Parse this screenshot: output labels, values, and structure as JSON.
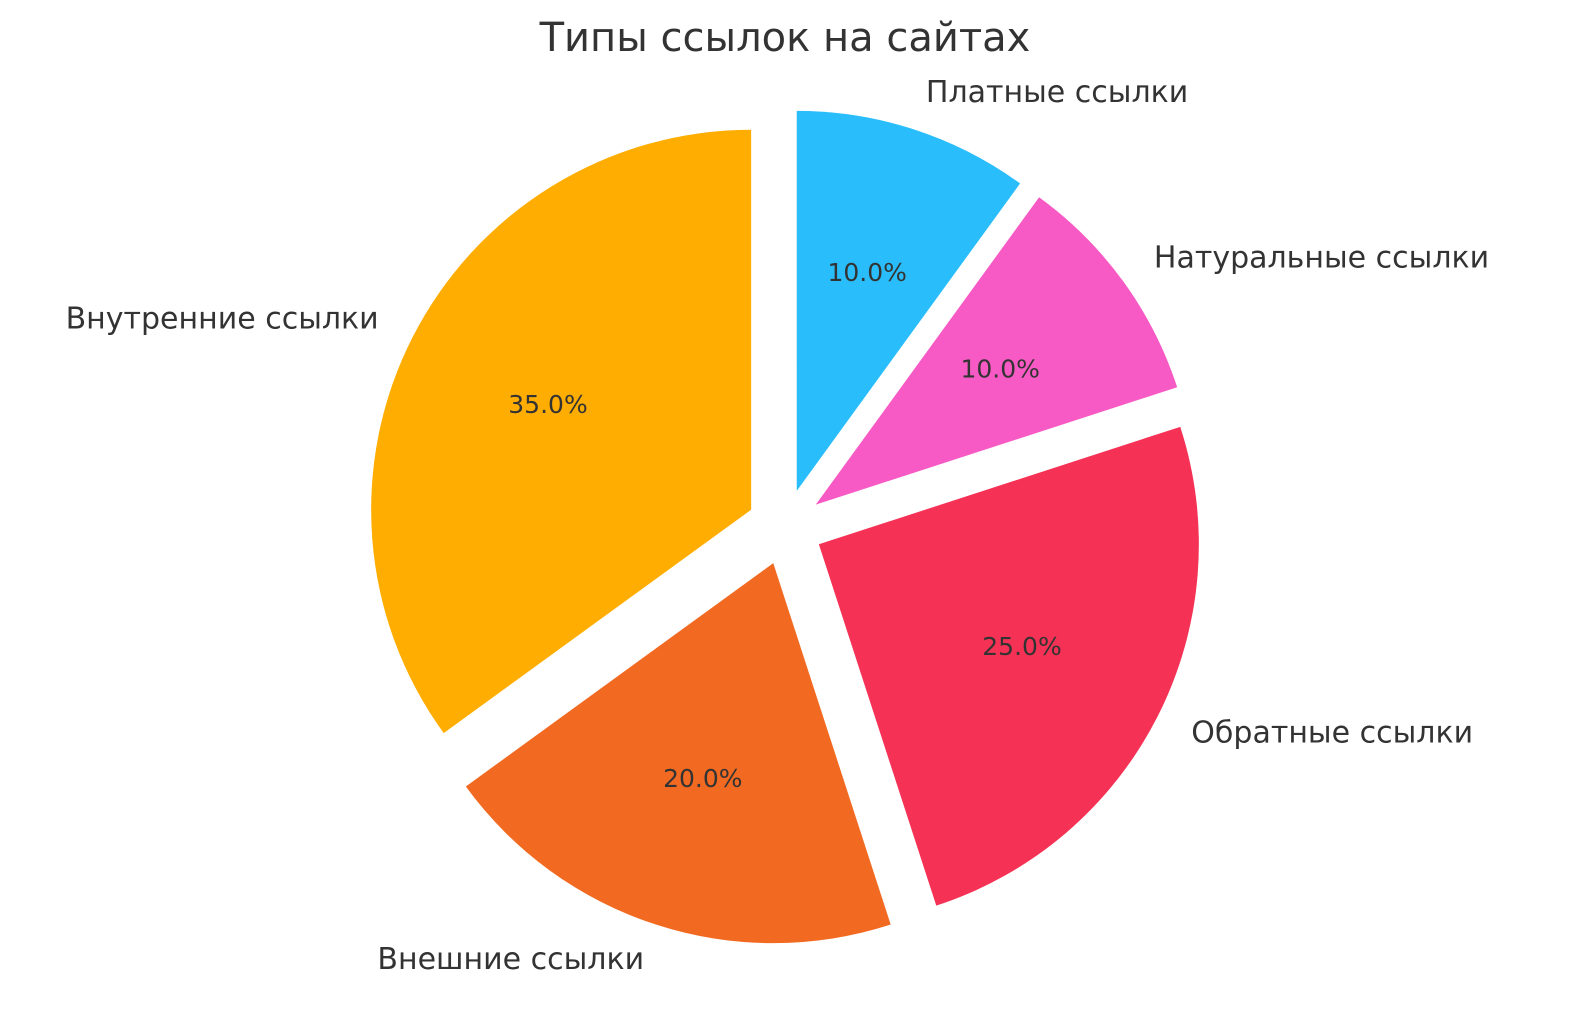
{
  "chart_data": {
    "type": "pie",
    "title": "Типы ссылок на сайтах",
    "categories": [
      "Внутренние ссылки",
      "Внешние ссылки",
      "Обратные ссылки",
      "Натуральные ссылки",
      "Платные ссылки"
    ],
    "values": [
      35,
      20,
      25,
      10,
      10
    ],
    "value_labels": [
      "35.0%",
      "20.0%",
      "25.0%",
      "10.0%",
      "10.0%"
    ],
    "colors": [
      "#ffad00",
      "#f26a21",
      "#f53255",
      "#f75ac4",
      "#29bdfb"
    ]
  }
}
